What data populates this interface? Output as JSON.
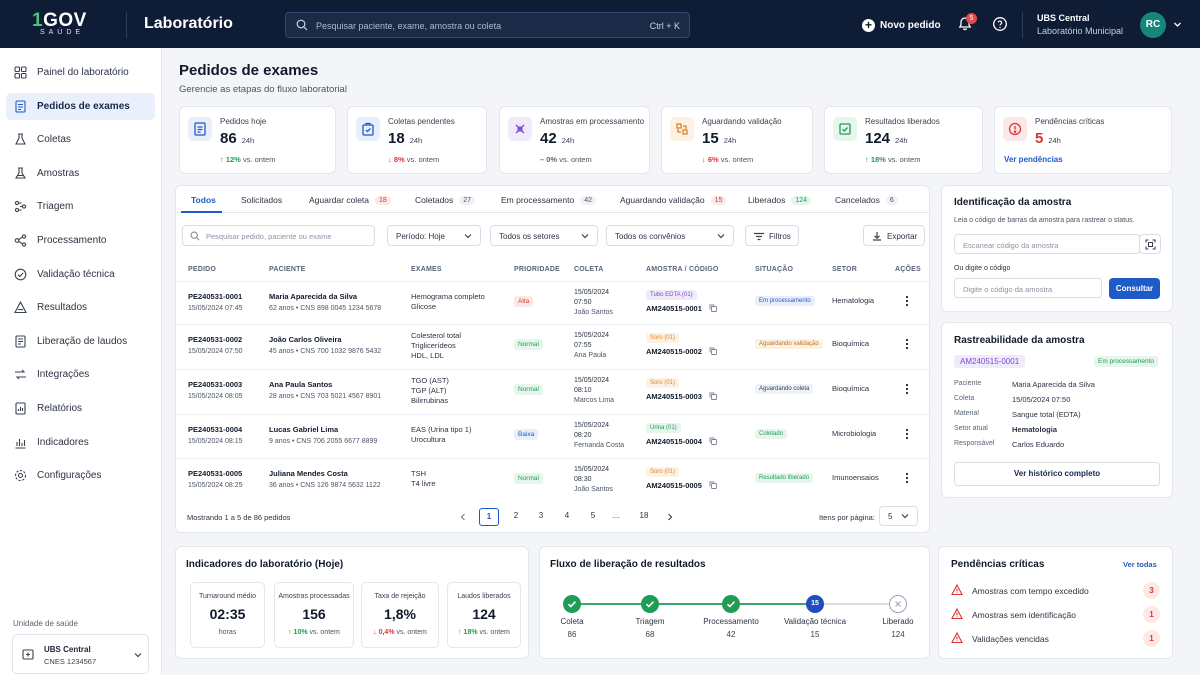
{
  "header": {
    "logo_text": "GOV",
    "logo_one": "1",
    "logo_sub": "SAÚDE",
    "app_title": "Laboratório",
    "search_placeholder": "Pesquisar paciente, exame, amostra ou coleta",
    "search_shortcut": "Ctrl + K",
    "new_order_label": "Novo pedido",
    "notification_count": "5",
    "unit_name": "UBS Central",
    "unit_subtitle": "Laboratório Municipal",
    "avatar_initials": "RC"
  },
  "sidebar": {
    "items": [
      {
        "label": "Painel do laboratório",
        "icon": "dashboard-icon"
      },
      {
        "label": "Pedidos de exames",
        "icon": "orders-icon",
        "active": true
      },
      {
        "label": "Coletas",
        "icon": "flask-icon"
      },
      {
        "label": "Amostras",
        "icon": "sample-icon"
      },
      {
        "label": "Triagem",
        "icon": "triage-icon"
      },
      {
        "label": "Processamento",
        "icon": "process-icon"
      },
      {
        "label": "Validação técnica",
        "icon": "validation-icon"
      },
      {
        "label": "Resultados",
        "icon": "results-icon"
      },
      {
        "label": "Liberação de laudos",
        "icon": "report-icon"
      },
      {
        "label": "Integrações",
        "icon": "integration-icon"
      },
      {
        "label": "Relatórios",
        "icon": "reports-icon"
      },
      {
        "label": "Indicadores",
        "icon": "chart-icon"
      },
      {
        "label": "Configurações",
        "icon": "gear-icon"
      }
    ],
    "unit_label": "Unidade de saúde",
    "unit_name": "UBS Central",
    "unit_cnes": "CNES 1234567"
  },
  "page": {
    "title": "Pedidos de exames",
    "subtitle": "Gerencie as etapas do fluxo laboratorial"
  },
  "kpis": [
    {
      "label": "Pedidos hoje",
      "value": "86",
      "unit": "24h",
      "trend": "↑ 12%",
      "trend_text": "vs. ontem",
      "dir": "up",
      "color": "#e8effb",
      "icon_color": "#1e5bc6"
    },
    {
      "label": "Coletas pendentes",
      "value": "18",
      "unit": "24h",
      "trend": "↓ 8%",
      "trend_text": "vs. ontem",
      "dir": "down",
      "color": "#e8effb",
      "icon_color": "#1e5bc6"
    },
    {
      "label": "Amostras em processamento",
      "value": "42",
      "unit": "24h",
      "trend": "– 0%",
      "trend_text": "vs. ontem",
      "dir": "flat",
      "color": "#f1eafb",
      "icon_color": "#7a4cc9"
    },
    {
      "label": "Aguardando validação",
      "value": "15",
      "unit": "24h",
      "trend": "↓ 6%",
      "trend_text": "vs. ontem",
      "dir": "down",
      "color": "#fdf1e3",
      "icon_color": "#d9822b"
    },
    {
      "label": "Resultados liberados",
      "value": "124",
      "unit": "24h",
      "trend": "↑ 18%",
      "trend_text": "vs. ontem",
      "dir": "up",
      "color": "#e6f6ec",
      "icon_color": "#1f9d55"
    },
    {
      "label": "Pendências críticas",
      "value": "5",
      "unit": "24h",
      "link": "Ver pendências",
      "color": "#fde8e8",
      "icon_color": "#d93636"
    }
  ],
  "tabs": [
    {
      "label": "Todos",
      "count": ""
    },
    {
      "label": "Solicitados",
      "count": ""
    },
    {
      "label": "Aguardar coleta",
      "count": "18"
    },
    {
      "label": "Coletados",
      "count": "27"
    },
    {
      "label": "Em processamento",
      "count": "42"
    },
    {
      "label": "Aguardando validação",
      "count": "15"
    },
    {
      "label": "Liberados",
      "count": "124"
    },
    {
      "label": "Cancelados",
      "count": "6"
    }
  ],
  "filters": {
    "search_placeholder": "Pesquisar pedido, paciente ou exame",
    "period": "Período: Hoje",
    "sectors": "Todos os setores",
    "insurances": "Todos os convênios",
    "filters_btn": "Filtros",
    "export_btn": "Exportar"
  },
  "table": {
    "columns": [
      "PEDIDO",
      "PACIENTE",
      "EXAMES",
      "PRIORIDADE",
      "COLETA",
      "AMOSTRA / CÓDIGO",
      "SITUAÇÃO",
      "SETOR",
      "AÇÕES"
    ],
    "rows": [
      {
        "id": "PE240531-0001",
        "date": "15/05/2024 07:45",
        "patient": "Maria Aparecida da Silva",
        "info": "62 anos • CNS 898 0045 1234 5678",
        "exams": [
          "Hemograma completo",
          "Glicose"
        ],
        "priority": "Alta",
        "pcolor": "#fde8e8",
        "ptext": "#d93636",
        "c_date": "15/05/2024",
        "c_time": "07:50",
        "c_by": "João Santos",
        "sample_type": "Tubo EDTA (01)",
        "stcolor": "#f1eafb",
        "sttext": "#7a4cc9",
        "sample_code": "AM240515-0001",
        "status": "Em processamento",
        "scolor": "#e8effb",
        "stext": "#1e5bc6",
        "sector": "Hematologia"
      },
      {
        "id": "PE240531-0002",
        "date": "15/05/2024 07:50",
        "patient": "João Carlos Oliveira",
        "info": "45 anos • CNS 700 1032 9876 5432",
        "exams": [
          "Colesterol total",
          "Triglicerídeos",
          "HDL, LDL"
        ],
        "priority": "Normal",
        "pcolor": "#e6f6ec",
        "ptext": "#1f9d55",
        "c_date": "15/05/2024",
        "c_time": "07:55",
        "c_by": "Ana Paula",
        "sample_type": "Soro (01)",
        "stcolor": "#fdf1e3",
        "sttext": "#d9822b",
        "sample_code": "AM240515-0002",
        "status": "Aguardando validação",
        "scolor": "#fdf1e3",
        "stext": "#c46f1a",
        "sector": "Bioquímica"
      },
      {
        "id": "PE240531-0003",
        "date": "15/05/2024 08:05",
        "patient": "Ana Paula Santos",
        "info": "28 anos • CNS 703 5021 4567 8901",
        "exams": [
          "TGO (AST)",
          "TGP (ALT)",
          "Bilirrubinas"
        ],
        "priority": "Normal",
        "pcolor": "#e6f6ec",
        "ptext": "#1f9d55",
        "c_date": "15/05/2024",
        "c_time": "08:10",
        "c_by": "Marcos Lima",
        "sample_type": "Soro (01)",
        "stcolor": "#fdf1e3",
        "sttext": "#d9822b",
        "sample_code": "AM240515-0003",
        "status": "Aguardando coleta",
        "scolor": "#eef1f5",
        "stext": "#394252",
        "sector": "Bioquímica"
      },
      {
        "id": "PE240531-0004",
        "date": "15/05/2024 08:15",
        "patient": "Lucas Gabriel Lima",
        "info": "9 anos • CNS 706 2055 6677 8899",
        "exams": [
          "EAS (Urina tipo 1)",
          "Urocultura"
        ],
        "priority": "Baixa",
        "pcolor": "#e8effb",
        "ptext": "#1e5bc6",
        "c_date": "15/05/2024",
        "c_time": "08:20",
        "c_by": "Fernanda Costa",
        "sample_type": "Urina (01)",
        "stcolor": "#e6f6ec",
        "sttext": "#1f9d55",
        "sample_code": "AM240515-0004",
        "status": "Coletado",
        "scolor": "#e6f6ec",
        "stext": "#1f9d55",
        "sector": "Microbiologia"
      },
      {
        "id": "PE240531-0005",
        "date": "15/05/2024 08:25",
        "patient": "Juliana Mendes Costa",
        "info": "36 anos • CNS 126 9874 5632 1122",
        "exams": [
          "TSH",
          "T4 livre"
        ],
        "priority": "Normal",
        "pcolor": "#e6f6ec",
        "ptext": "#1f9d55",
        "c_date": "15/05/2024",
        "c_time": "08:30",
        "c_by": "João Santos",
        "sample_type": "Soro (01)",
        "stcolor": "#fdf1e3",
        "sttext": "#d9822b",
        "sample_code": "AM240515-0005",
        "status": "Resultado liberado",
        "scolor": "#e6f6ec",
        "stext": "#1f9d55",
        "sector": "Imunoensaios"
      }
    ],
    "showing": "Mostrando 1 a 5 de 86 pedidos",
    "pages": [
      "1",
      "2",
      "3",
      "4",
      "5",
      "...",
      "18"
    ],
    "per_page_label": "Itens por página:",
    "per_page_value": "5"
  },
  "sample_id": {
    "title": "Identificação da amostra",
    "desc": "Leia o código de barras da amostra para rastrear o status.",
    "scan_placeholder": "Escanear código da amostra",
    "or_label": "Ou digite o código",
    "code_placeholder": "Digite o código da amostra",
    "consult_btn": "Consultar"
  },
  "traceability": {
    "title": "Rastreabilidade da amostra",
    "code": "AM240515-0001",
    "status": "Em processamento",
    "fields": [
      {
        "k": "Paciente",
        "v": "Maria Aparecida da Silva"
      },
      {
        "k": "Coleta",
        "v": "15/05/2024 07:50"
      },
      {
        "k": "Material",
        "v": "Sangue total (EDTA)"
      },
      {
        "k": "Setor atual",
        "v": "Hematologia"
      },
      {
        "k": "Responsável",
        "v": "Carlos Eduardo"
      }
    ],
    "history_btn": "Ver histórico completo"
  },
  "indicators": {
    "title": "Indicadores do laboratório (Hoje)",
    "items": [
      {
        "label": "Turnaround médio",
        "value": "02:35",
        "sub": "horas",
        "trend": ""
      },
      {
        "label": "Amostras processadas",
        "value": "156",
        "trend": "↑ 10%",
        "sub": "vs. ontem",
        "dir": "up"
      },
      {
        "label": "Taxa de rejeição",
        "value": "1,8%",
        "trend": "↓ 0,4%",
        "sub": "vs. ontem",
        "dir": "down"
      },
      {
        "label": "Laudos liberados",
        "value": "124",
        "trend": "↑ 18%",
        "sub": "vs. ontem",
        "dir": "up"
      }
    ]
  },
  "flow": {
    "title": "Fluxo de liberação de resultados",
    "steps": [
      {
        "label": "Coleta",
        "value": "86",
        "state": "done"
      },
      {
        "label": "Triagem",
        "value": "68",
        "state": "done"
      },
      {
        "label": "Processamento",
        "value": "42",
        "state": "done"
      },
      {
        "label": "Validação técnica",
        "value": "15",
        "state": "current"
      },
      {
        "label": "Liberado",
        "value": "124",
        "state": "pending"
      }
    ]
  },
  "pending": {
    "title": "Pendências críticas",
    "see_all": "Ver todas",
    "items": [
      {
        "label": "Amostras com tempo excedido",
        "count": "3"
      },
      {
        "label": "Amostras sem identificação",
        "count": "1"
      },
      {
        "label": "Validações vencidas",
        "count": "1"
      }
    ]
  }
}
